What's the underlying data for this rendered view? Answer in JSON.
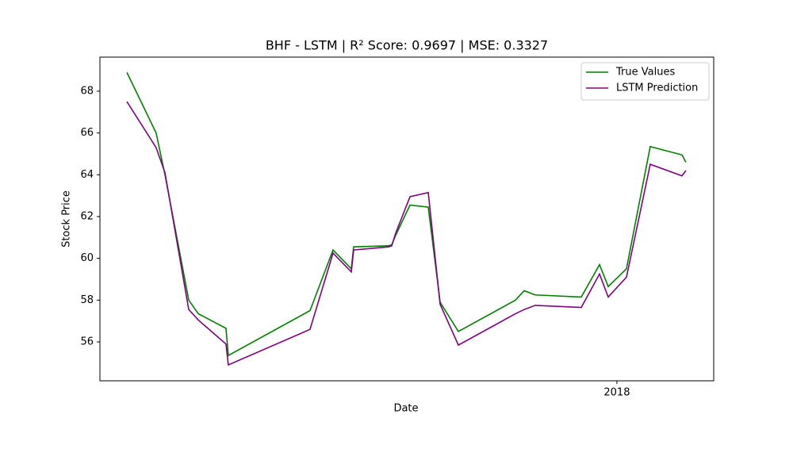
{
  "chart_data": {
    "type": "line",
    "title": "BHF - LSTM | R² Score: 0.9697 | MSE: 0.3327",
    "x_label": "Date",
    "y_label": "Stock Price",
    "x": [
      2017.6,
      2017.6239,
      2017.6311,
      2017.6505,
      2017.6583,
      2017.6809,
      2017.6828,
      2017.7495,
      2017.7683,
      2017.7832,
      2017.7851,
      2017.8136,
      2017.8162,
      2017.8194,
      2017.8311,
      2017.846,
      2017.8557,
      2017.8706,
      2017.9172,
      2017.9243,
      2017.9333,
      2017.9709,
      2017.9858,
      2017.9929,
      2018.0078,
      2018.0272,
      2018.0531,
      2018.0563
    ],
    "series": [
      {
        "name": "True Values",
        "color": "#008000",
        "values": [
          68.9,
          66.0,
          64.0,
          58.0,
          57.35,
          56.65,
          55.35,
          57.5,
          60.4,
          59.5,
          60.55,
          60.6,
          60.65,
          61.1,
          62.55,
          62.45,
          57.9,
          56.5,
          58.0,
          58.45,
          58.25,
          58.15,
          59.7,
          58.65,
          59.5,
          65.35,
          64.95,
          64.6
        ]
      },
      {
        "name": "LSTM Prediction",
        "color": "#800080",
        "values": [
          67.5,
          65.3,
          64.1,
          57.55,
          57.05,
          55.9,
          54.9,
          56.6,
          60.25,
          59.35,
          60.4,
          60.55,
          60.6,
          61.2,
          62.95,
          63.15,
          57.8,
          55.85,
          57.35,
          57.55,
          57.75,
          57.65,
          59.25,
          58.15,
          59.1,
          64.5,
          63.95,
          64.2
        ]
      }
    ],
    "xlim": [
      2017.578,
      2018.079
    ],
    "xticks": [
      {
        "value": 2018,
        "label": "2018"
      }
    ],
    "ylim": [
      54.14,
      69.63
    ],
    "yticks": [
      56,
      58,
      60,
      62,
      64,
      66,
      68
    ],
    "legend": "upper right"
  }
}
